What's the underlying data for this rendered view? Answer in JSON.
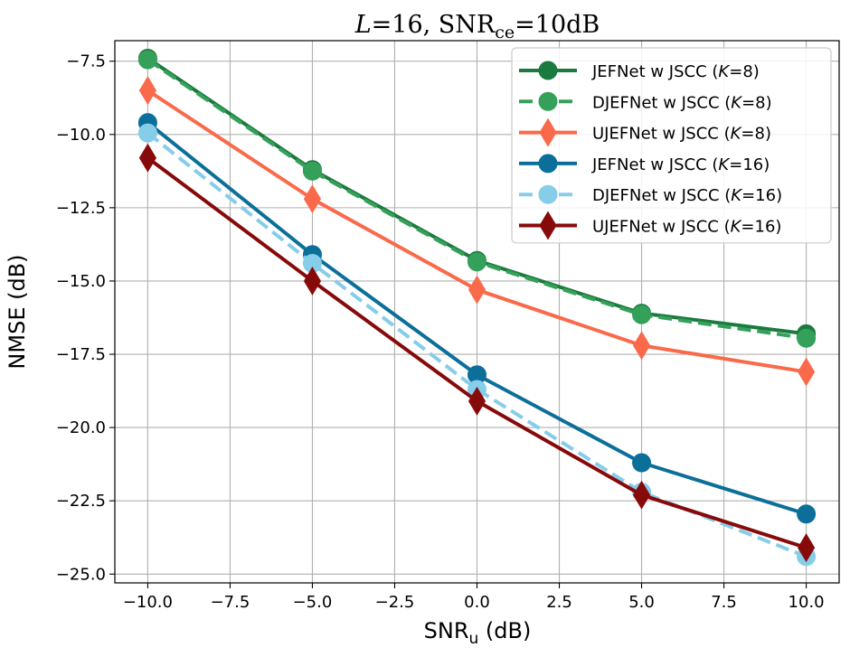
{
  "chart_data": {
    "type": "line",
    "title": {
      "l_symbol": "L",
      "l_value": "=16, SNR",
      "l_sub": "ce",
      "l_tail": "=10dB"
    },
    "xlabel": {
      "main": "SNR",
      "sub": "u",
      "tail": " (dB)"
    },
    "ylabel": "NMSE (dB)",
    "xlim": [
      -11.0,
      11.0
    ],
    "ylim": [
      -25.3,
      -6.8
    ],
    "xticks": [
      -10.0,
      -7.5,
      -5.0,
      -2.5,
      0.0,
      2.5,
      5.0,
      7.5,
      10.0
    ],
    "xtick_labels": [
      "−10.0",
      "−7.5",
      "−5.0",
      "−2.5",
      "0.0",
      "2.5",
      "5.0",
      "7.5",
      "10.0"
    ],
    "yticks": [
      -7.5,
      -10.0,
      -12.5,
      -15.0,
      -17.5,
      -20.0,
      -22.5,
      -25.0
    ],
    "ytick_labels": [
      "−7.5",
      "−10.0",
      "−12.5",
      "−15.0",
      "−17.5",
      "−20.0",
      "−22.5",
      "−25.0"
    ],
    "grid": true,
    "legend_position": "top-right",
    "x": [
      -10,
      -5,
      0,
      5,
      10
    ],
    "series": [
      {
        "label_pre": "JEFNet w JSCC (",
        "label_k": "K",
        "label_post": "=8)",
        "color": "#1b7a3e",
        "dash": "solid",
        "marker": "circle",
        "values": [
          -7.4,
          -11.2,
          -14.3,
          -16.1,
          -16.8
        ]
      },
      {
        "label_pre": "DJEFNet w JSCC (",
        "label_k": "K",
        "label_post": "=8)",
        "color": "#35a05a",
        "dash": "dashed",
        "marker": "circle",
        "values": [
          -7.45,
          -11.25,
          -14.35,
          -16.15,
          -16.95
        ]
      },
      {
        "label_pre": "UJEFNet w JSCC (",
        "label_k": "K",
        "label_post": "=8)",
        "color": "#fa6a4a",
        "dash": "solid",
        "marker": "diamond",
        "values": [
          -8.5,
          -12.2,
          -15.3,
          -17.2,
          -18.1
        ]
      },
      {
        "label_pre": "JEFNet w JSCC (",
        "label_k": "K",
        "label_post": "=16)",
        "color": "#0b6f9a",
        "dash": "solid",
        "marker": "circle",
        "values": [
          -9.6,
          -14.1,
          -18.2,
          -21.2,
          -22.95
        ]
      },
      {
        "label_pre": "DJEFNet w JSCC (",
        "label_k": "K",
        "label_post": "=16)",
        "color": "#86cdea",
        "dash": "dashed",
        "marker": "circle",
        "values": [
          -9.95,
          -14.4,
          -18.7,
          -22.2,
          -24.4
        ]
      },
      {
        "label_pre": "UJEFNet w JSCC (",
        "label_k": "K",
        "label_post": "=16)",
        "color": "#870a0a",
        "dash": "solid",
        "marker": "diamond",
        "values": [
          -10.8,
          -15.0,
          -19.1,
          -22.3,
          -24.1
        ]
      }
    ]
  }
}
